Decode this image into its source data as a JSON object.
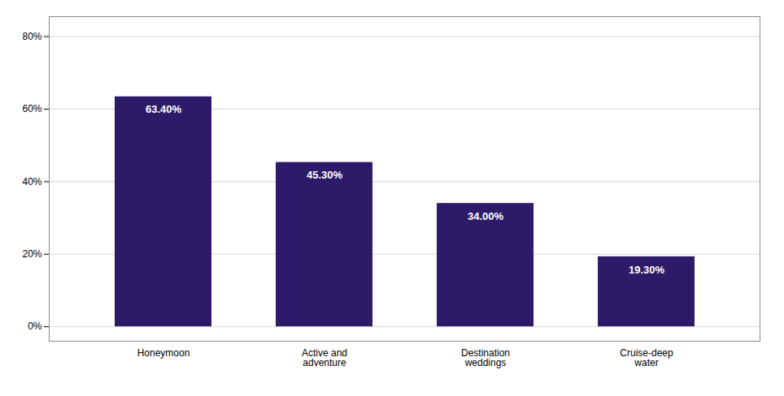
{
  "chart_data": {
    "type": "bar",
    "categories": [
      "Honeymoon",
      "Active and\nadventure",
      "Destination\nweddings",
      "Cruise-deep\nwater"
    ],
    "values": [
      63.4,
      45.3,
      34.0,
      19.3
    ],
    "value_labels": [
      "63.40%",
      "45.30%",
      "34.00%",
      "19.30%"
    ],
    "data_labels": true,
    "color": "#2D1B69",
    "ylim": [
      -4,
      85.5
    ],
    "yticks": [
      {
        "value": 0,
        "label": "0%"
      },
      {
        "value": 20,
        "label": "20%"
      },
      {
        "value": 40,
        "label": "40%"
      },
      {
        "value": 60,
        "label": "60%"
      },
      {
        "value": 80,
        "label": "80%"
      }
    ],
    "grid": true
  }
}
